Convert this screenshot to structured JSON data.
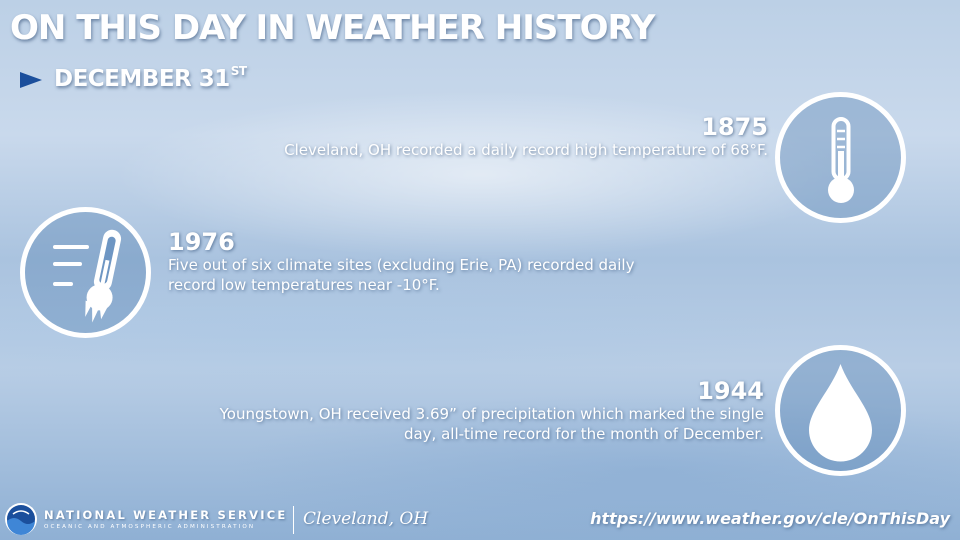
{
  "header": {
    "title": "ON THIS DAY IN WEATHER HISTORY",
    "date_main": "DECEMBER 31",
    "date_suffix": "ST"
  },
  "events": [
    {
      "year": "1875",
      "desc_lines": [
        "Cleveland, OH recorded a daily record high temperature of 68°F."
      ],
      "icon": "thermometer-icon"
    },
    {
      "year": "1976",
      "desc_lines": [
        "Five out of six climate sites (excluding Erie, PA) recorded daily",
        "record low temperatures near -10°F."
      ],
      "icon": "frozen-thermometer-icon"
    },
    {
      "year": "1944",
      "desc_lines": [
        "Youngstown, OH received 3.69” of precipitation which marked the single",
        "day, all-time record for the month of December."
      ],
      "icon": "raindrop-icon"
    }
  ],
  "footer": {
    "org_name": "NATIONAL WEATHER SERVICE",
    "org_sub": "OCEANIC AND ATMOSPHERIC ADMINISTRATION",
    "office": "Cleveland, OH",
    "url": "https://www.weather.gov/cle/OnThisDay"
  },
  "colors": {
    "accent": "#1b4f9c",
    "text": "#ffffff"
  }
}
